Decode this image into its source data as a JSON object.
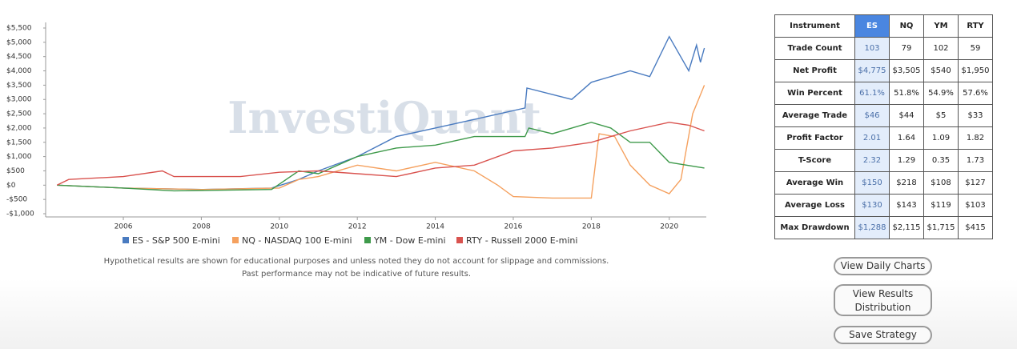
{
  "chart_data": {
    "type": "line",
    "watermark": "InvestiQuant",
    "xlim": [
      2004.1,
      2020.95
    ],
    "xticks": [
      2006,
      2008,
      2010,
      2012,
      2014,
      2016,
      2018,
      2020
    ],
    "ylim": [
      -1000,
      5500
    ],
    "yticks": [
      {
        "value": -1000,
        "label": "-$1,000"
      },
      {
        "value": -500,
        "label": "-$500"
      },
      {
        "value": 0,
        "label": "$0"
      },
      {
        "value": 500,
        "label": "$500"
      },
      {
        "value": 1000,
        "label": "$1,000"
      },
      {
        "value": 1500,
        "label": "$1,500"
      },
      {
        "value": 2000,
        "label": "$2,000"
      },
      {
        "value": 2500,
        "label": "$2,500"
      },
      {
        "value": 3000,
        "label": "$3,000"
      },
      {
        "value": 3500,
        "label": "$3,500"
      },
      {
        "value": 4000,
        "label": "$4,000"
      },
      {
        "value": 4500,
        "label": "$4,500"
      },
      {
        "value": 5000,
        "label": "$5,000"
      },
      {
        "value": 5500,
        "label": "$5,500"
      }
    ],
    "grid": false,
    "series": [
      {
        "name": "ES - S&P 500 E-mini",
        "color": "#4a7bc0",
        "x": [
          2004.3,
          2006,
          2008,
          2009.8,
          2010.5,
          2011,
          2012,
          2013,
          2014,
          2015,
          2016.3,
          2016.35,
          2017.5,
          2018,
          2019,
          2019.5,
          2020,
          2020.5,
          2020.7,
          2020.8,
          2020.9
        ],
        "values": [
          0,
          -100,
          -150,
          -100,
          200,
          500,
          1000,
          1700,
          2000,
          2300,
          2700,
          3400,
          3000,
          3600,
          4000,
          3800,
          5200,
          4000,
          4900,
          4300,
          4800
        ]
      },
      {
        "name": "NQ - NASDAQ 100 E-mini",
        "color": "#f5a15f",
        "x": [
          2004.3,
          2006,
          2008,
          2010,
          2010.5,
          2011,
          2012,
          2013,
          2014,
          2015,
          2015.6,
          2016,
          2017,
          2018,
          2018.2,
          2018.6,
          2019,
          2019.5,
          2020,
          2020.3,
          2020.6,
          2020.9
        ],
        "values": [
          0,
          -100,
          -150,
          -100,
          200,
          300,
          700,
          500,
          800,
          500,
          0,
          -400,
          -450,
          -450,
          1800,
          1700,
          700,
          0,
          -300,
          200,
          2500,
          3500
        ]
      },
      {
        "name": "YM - Dow E-mini",
        "color": "#3f9a4b",
        "x": [
          2004.3,
          2006,
          2007.3,
          2009.8,
          2010.5,
          2011,
          2012,
          2013,
          2014,
          2015,
          2016.3,
          2016.4,
          2017,
          2018,
          2018.5,
          2019,
          2019.5,
          2020,
          2020.9
        ],
        "values": [
          0,
          -100,
          -200,
          -150,
          500,
          400,
          1000,
          1300,
          1400,
          1700,
          1700,
          2000,
          1800,
          2200,
          2000,
          1500,
          1500,
          800,
          600
        ]
      },
      {
        "name": "RTY - Russell 2000 E-mini",
        "color": "#d9534f",
        "x": [
          2004.3,
          2004.6,
          2006,
          2007,
          2007.3,
          2009,
          2010,
          2011,
          2012,
          2013,
          2014,
          2015,
          2016,
          2017,
          2018,
          2018.5,
          2019,
          2020,
          2020.5,
          2020.9
        ],
        "values": [
          0,
          200,
          300,
          500,
          300,
          300,
          450,
          500,
          400,
          300,
          600,
          700,
          1200,
          1300,
          1500,
          1700,
          1900,
          2200,
          2100,
          1900
        ]
      }
    ],
    "disclaimer": [
      "Hypothetical results are shown for educational purposes and unless noted they do not account for slippage and commissions.",
      "Past performance may not be indicative of future results."
    ]
  },
  "table": {
    "header": [
      "Instrument",
      "ES",
      "NQ",
      "YM",
      "RTY"
    ],
    "rows": [
      [
        "Trade Count",
        "103",
        "79",
        "102",
        "59"
      ],
      [
        "Net Profit",
        "$4,775",
        "$3,505",
        "$540",
        "$1,950"
      ],
      [
        "Win Percent",
        "61.1%",
        "51.8%",
        "54.9%",
        "57.6%"
      ],
      [
        "Average Trade",
        "$46",
        "$44",
        "$5",
        "$33"
      ],
      [
        "Profit Factor",
        "2.01",
        "1.64",
        "1.09",
        "1.82"
      ],
      [
        "T-Score",
        "2.32",
        "1.29",
        "0.35",
        "1.73"
      ],
      [
        "Average Win",
        "$150",
        "$218",
        "$108",
        "$127"
      ],
      [
        "Average Loss",
        "$130",
        "$143",
        "$119",
        "$103"
      ],
      [
        "Max Drawdown",
        "$1,288",
        "$2,115",
        "$1,715",
        "$415"
      ]
    ]
  },
  "buttons": [
    "View Daily Charts",
    "View Results Distribution",
    "Save Strategy"
  ]
}
